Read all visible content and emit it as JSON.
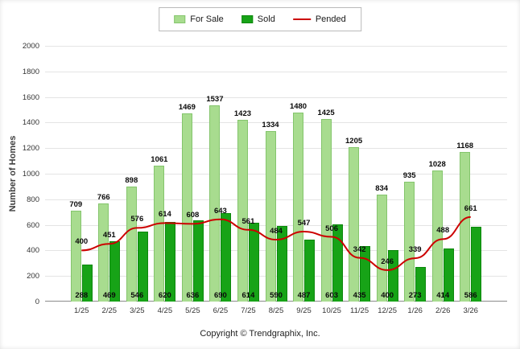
{
  "chart_data": {
    "type": "bar",
    "title": "",
    "categories": [
      "1/25",
      "2/25",
      "3/25",
      "4/25",
      "5/25",
      "6/25",
      "7/25",
      "8/25",
      "9/25",
      "10/25",
      "11/25",
      "12/25",
      "1/26",
      "2/26",
      "3/26"
    ],
    "series": [
      {
        "name": "For Sale",
        "type": "bar",
        "color": "#a8dc8f",
        "border": "#84c56c",
        "values": [
          709,
          766,
          898,
          1061,
          1469,
          1537,
          1423,
          1334,
          1480,
          1425,
          1205,
          834,
          935,
          1028,
          1168
        ]
      },
      {
        "name": "Sold",
        "type": "bar",
        "color": "#17a317",
        "border": "#0c870c",
        "values": [
          288,
          469,
          546,
          620,
          636,
          690,
          614,
          590,
          487,
          603,
          435,
          400,
          273,
          414,
          586
        ]
      },
      {
        "name": "Pended",
        "type": "line",
        "color": "#cc0000",
        "values": [
          400,
          451,
          576,
          614,
          608,
          643,
          561,
          484,
          547,
          506,
          342,
          246,
          339,
          488,
          661
        ]
      }
    ],
    "xlabel": "",
    "ylabel": "Number of Homes",
    "ylim": [
      0,
      2000
    ],
    "ytick_step": 200,
    "grid": true,
    "legend_position": "top"
  },
  "footer": {
    "copyright": "Copyright © Trendgraphix, Inc."
  }
}
